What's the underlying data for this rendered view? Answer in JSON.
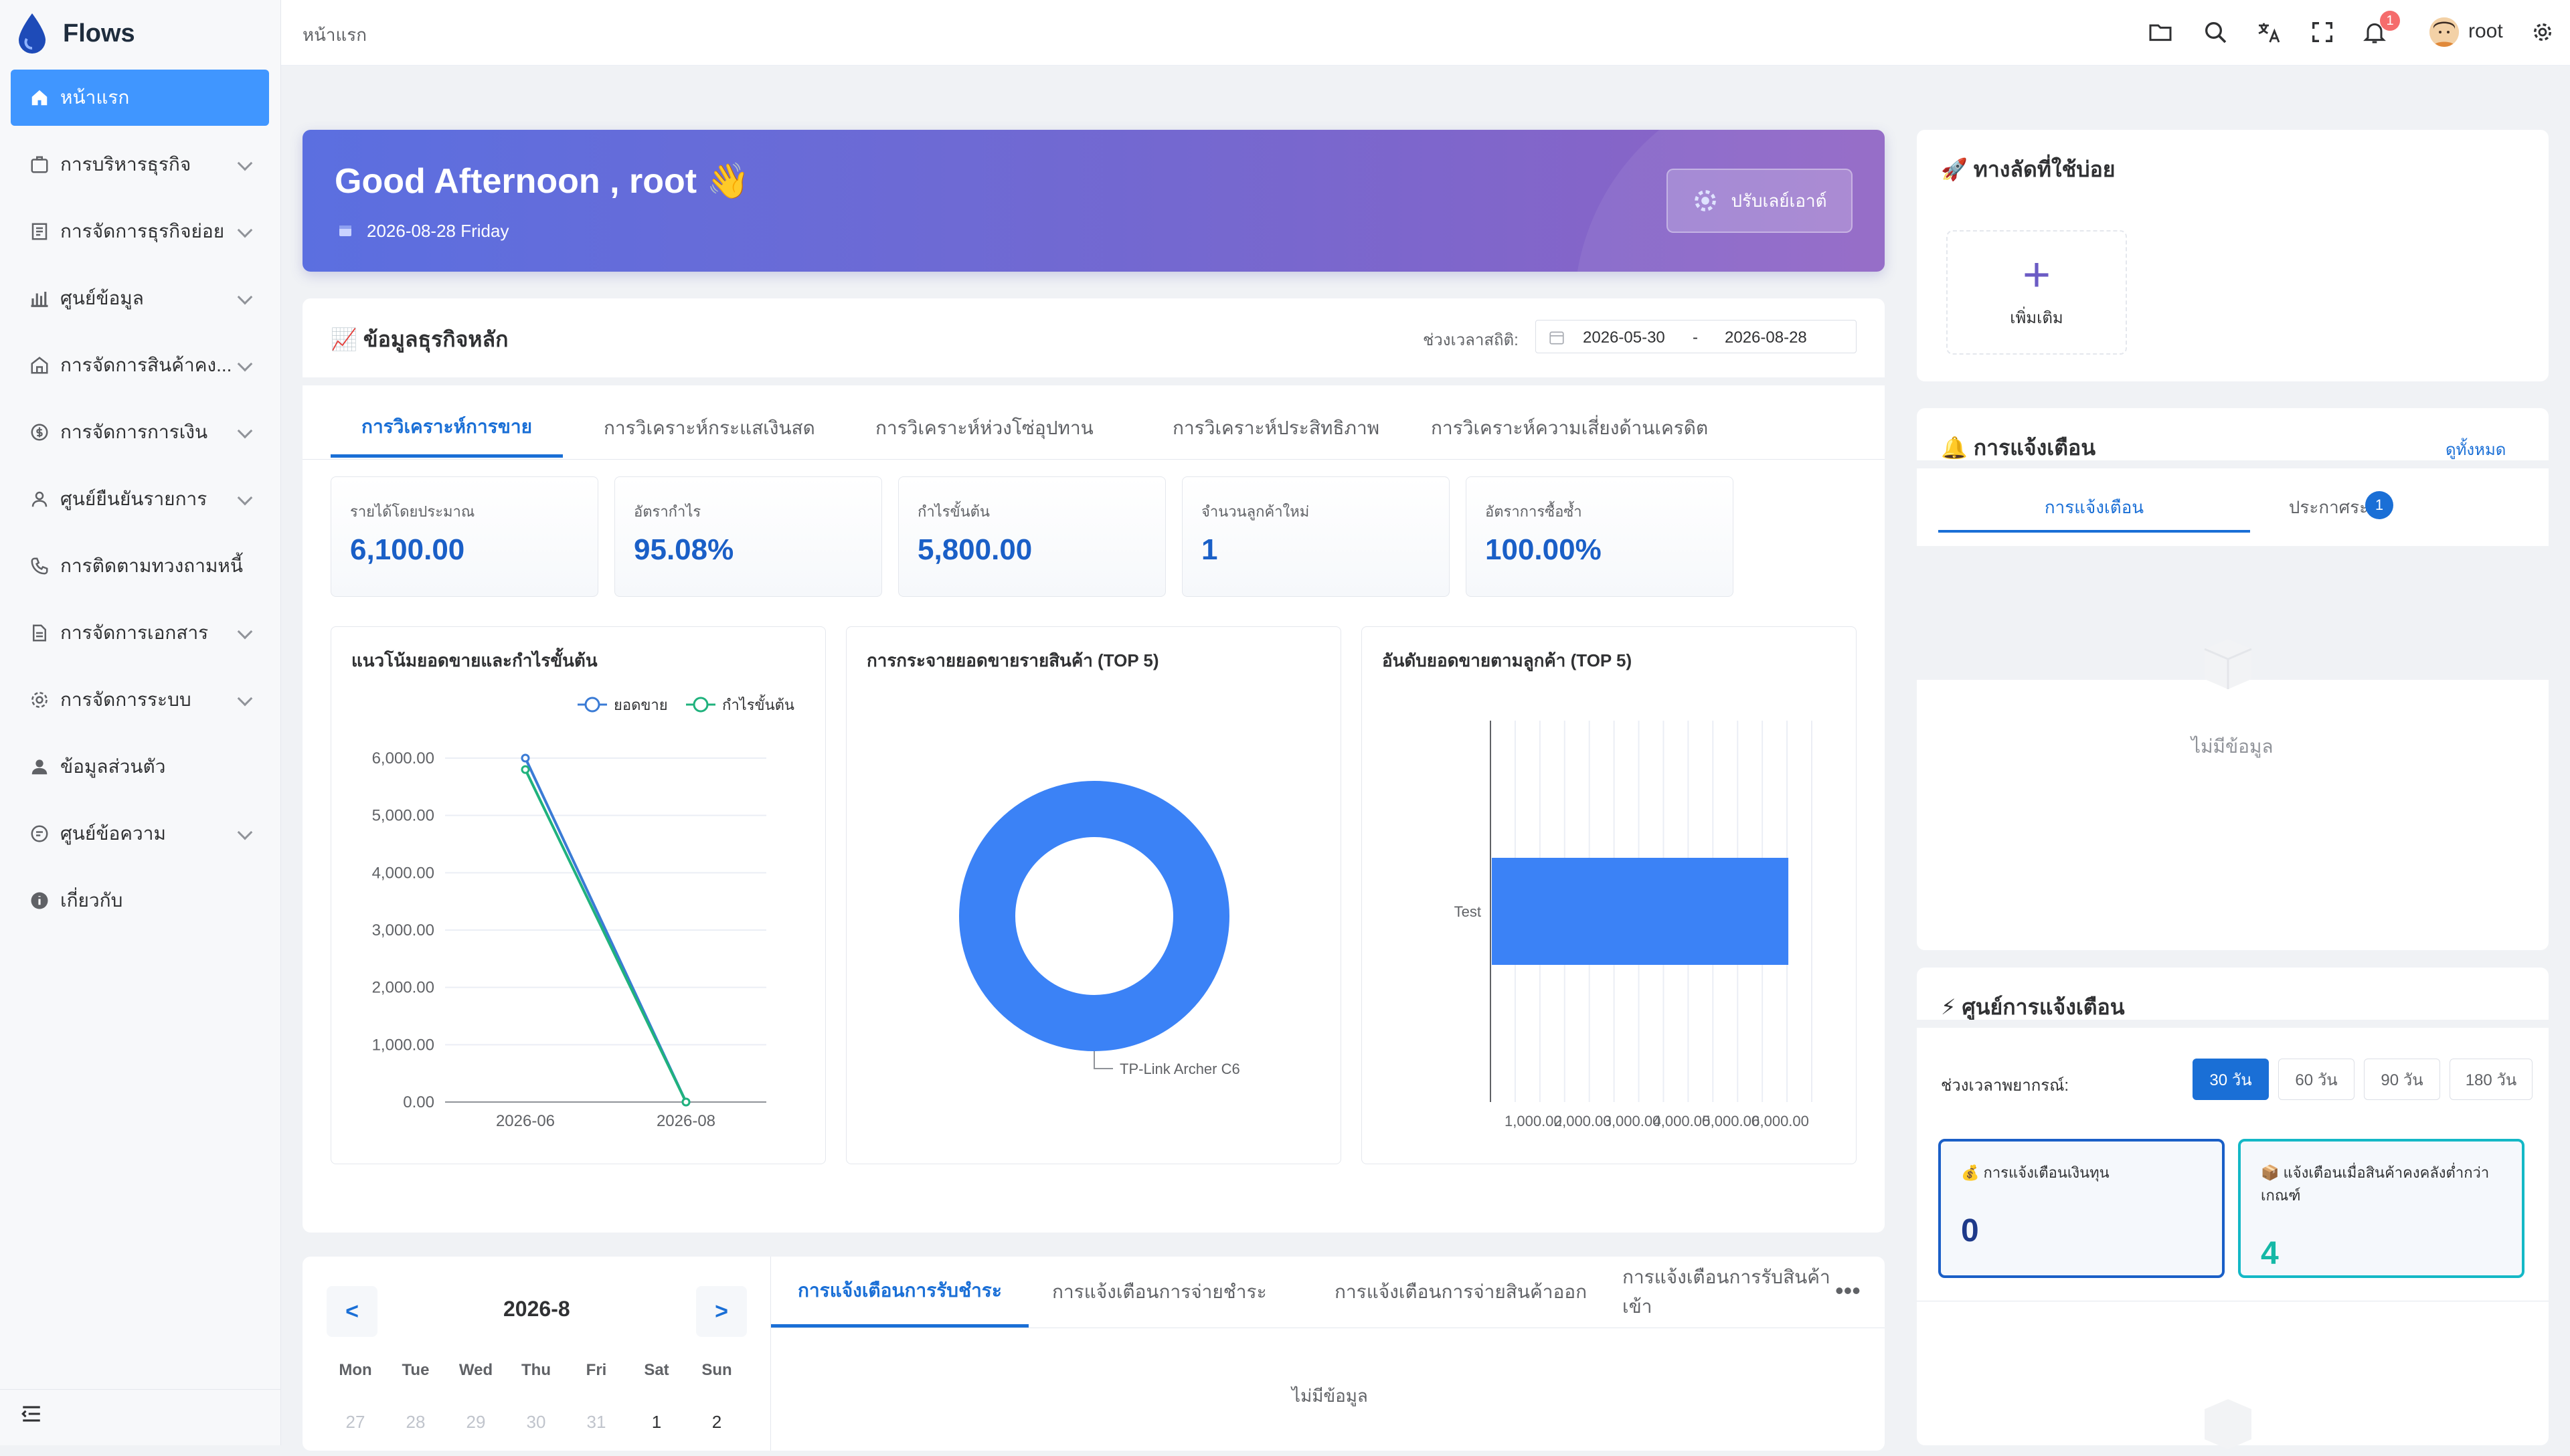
{
  "app": {
    "name": "Flows"
  },
  "sidebar": {
    "items": [
      {
        "label": "หน้าแรก",
        "icon": "home-icon",
        "active": true
      },
      {
        "label": "การบริหารธุรกิจ",
        "icon": "briefcase-icon"
      },
      {
        "label": "การจัดการธุรกิจย่อย",
        "icon": "document-list-icon"
      },
      {
        "label": "ศูนย์ข้อมูล",
        "icon": "bar-chart-icon"
      },
      {
        "label": "การจัดการสินค้าคง...",
        "icon": "warehouse-icon"
      },
      {
        "label": "การจัดการการเงิน",
        "icon": "money-icon"
      },
      {
        "label": "ศูนย์ยืนยันรายการ",
        "icon": "user-check-icon"
      },
      {
        "label": "การติดตามทวงถามหนี้",
        "icon": "phone-icon"
      },
      {
        "label": "การจัดการเอกสาร",
        "icon": "file-icon"
      },
      {
        "label": "การจัดการระบบ",
        "icon": "gear-icon"
      },
      {
        "label": "ข้อมูลส่วนตัว",
        "icon": "user-icon"
      },
      {
        "label": "ศูนย์ข้อความ",
        "icon": "message-icon"
      },
      {
        "label": "เกี่ยวกับ",
        "icon": "info-icon"
      }
    ]
  },
  "topbar": {
    "breadcrumb": "หน้าแรก",
    "notification_count": "1",
    "user": "root"
  },
  "greeting": {
    "title": "Good Afternoon , root 👋",
    "date": "2026-08-28 Friday",
    "layout_button": "ปรับเลย์เอาต์"
  },
  "core": {
    "title": "📈 ข้อมูลธุรกิจหลัก",
    "range_label": "ช่วงเวลาสถิติ:",
    "range_start": "2026-05-30",
    "range_sep": "-",
    "range_end": "2026-08-28",
    "tabs": [
      "การวิเคราะห์การขาย",
      "การวิเคราะห์กระแสเงินสด",
      "การวิเคราะห์ห่วงโซ่อุปทาน",
      "การวิเคราะห์ประสิทธิภาพ",
      "การวิเคราะห์ความเสี่ยงด้านเครดิต"
    ],
    "stats": [
      {
        "label": "รายได้โดยประมาณ",
        "value": "6,100.00"
      },
      {
        "label": "อัตรากำไร",
        "value": "95.08%"
      },
      {
        "label": "กำไรขั้นต้น",
        "value": "5,800.00"
      },
      {
        "label": "จำนวนลูกค้าใหม่",
        "value": "1"
      },
      {
        "label": "อัตราการซื้อซ้ำ",
        "value": "100.00%"
      }
    ]
  },
  "chart_data": [
    {
      "type": "line",
      "title": "แนวโน้มยอดขายและกำไรขั้นต้น",
      "x": [
        "2026-06",
        "2026-08"
      ],
      "series": [
        {
          "name": "ยอดขาย",
          "values": [
            6000,
            0
          ],
          "color": "#3a7bd5"
        },
        {
          "name": "กำไรขั้นต้น",
          "values": [
            5800,
            0
          ],
          "color": "#20b27d"
        }
      ],
      "yticks": [
        "0.00",
        "1,000.00",
        "2,000.00",
        "3,000.00",
        "4,000.00",
        "5,000.00",
        "6,000.00"
      ],
      "ylim": [
        0,
        6000
      ],
      "legend": "top-right",
      "grid": true
    },
    {
      "type": "pie",
      "title": "การกระจายยอดขายรายสินค้า (TOP 5)",
      "categories": [
        "TP-Link Archer C6"
      ],
      "values": [
        1
      ],
      "color": "#3b82f6",
      "donut": true
    },
    {
      "type": "bar",
      "orientation": "horizontal",
      "title": "อันดับยอดขายตามลูกค้า (TOP 5)",
      "categories": [
        "Test"
      ],
      "values": [
        6000
      ],
      "color": "#3b82f6",
      "xticks": [
        "1,000.00",
        "2,000.00",
        "3,000.00",
        "4,000.00",
        "5,000.00",
        "6,000.00"
      ],
      "grid": true
    }
  ],
  "calendar": {
    "prev": "<",
    "next": ">",
    "month": "2026-8",
    "dow": [
      "Mon",
      "Tue",
      "Wed",
      "Thu",
      "Fri",
      "Sat",
      "Sun"
    ],
    "days": [
      "27",
      "28",
      "29",
      "30",
      "31",
      "1",
      "2"
    ]
  },
  "bottom": {
    "tabs": [
      "การแจ้งเตือนการรับชำระ",
      "การแจ้งเตือนการจ่ายชำระ",
      "การแจ้งเตือนการจ่ายสินค้าออก",
      "การแจ้งเตือนการรับสินค้าเข้า"
    ],
    "more": "•••",
    "empty": "ไม่มีข้อมูล"
  },
  "shortcut": {
    "title": "🚀 ทางลัดที่ใช้บ่อย",
    "plus": "+",
    "add_label": "เพิ่มเติม"
  },
  "notifications": {
    "title": "🔔 การแจ้งเตือน",
    "view_all": "ดูทั้งหมด",
    "tabs": [
      "การแจ้งเตือน",
      "ประกาศระบบ"
    ],
    "badge": "1",
    "empty": "ไม่มีข้อมูล"
  },
  "alert_center": {
    "title": "⚡ ศูนย์การแจ้งเตือน",
    "period_label": "ช่วงเวลาพยากรณ์:",
    "periods": [
      "30 วัน",
      "60 วัน",
      "90 วัน",
      "180 วัน"
    ],
    "cards": [
      {
        "label": "💰 การแจ้งเตือนเงินทุน",
        "value": "0",
        "color": "#1e3a8a",
        "border": "#1a5fc7"
      },
      {
        "label": "📦 แจ้งเตือนเมื่อสินค้าคงคลังต่ำกว่าเกณฑ์",
        "value": "4",
        "color": "#14b8a6",
        "border": "#14b8c6"
      }
    ]
  }
}
